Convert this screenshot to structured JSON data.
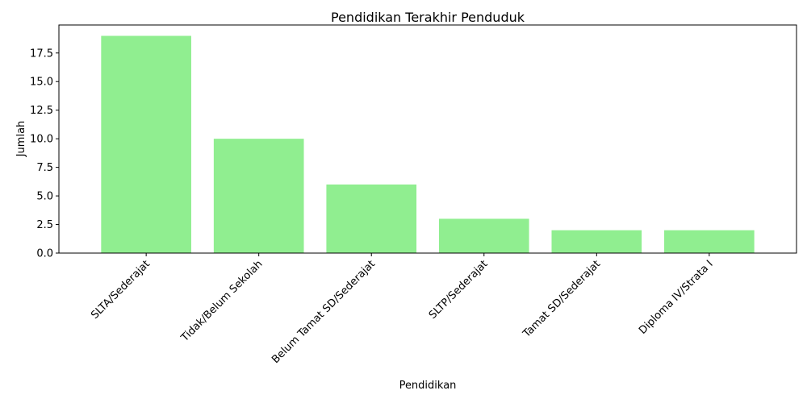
{
  "chart_data": {
    "type": "bar",
    "title": "Pendidikan Terakhir Penduduk",
    "xlabel": "Pendidikan",
    "ylabel": "Jumlah",
    "categories": [
      "SLTA/Sederajat",
      "Tidak/Belum Sekolah",
      "Belum Tamat SD/Sederajat",
      "SLTP/Sederajat",
      "Tamat SD/Sederajat",
      "Diploma IV/Strata I"
    ],
    "values": [
      19,
      10,
      6,
      3,
      2,
      2
    ],
    "ylim": [
      0,
      19.95
    ],
    "yticks": [
      "0.0",
      "2.5",
      "5.0",
      "7.5",
      "10.0",
      "12.5",
      "15.0",
      "17.5"
    ],
    "bar_color": "#90ee90",
    "grid": false
  }
}
